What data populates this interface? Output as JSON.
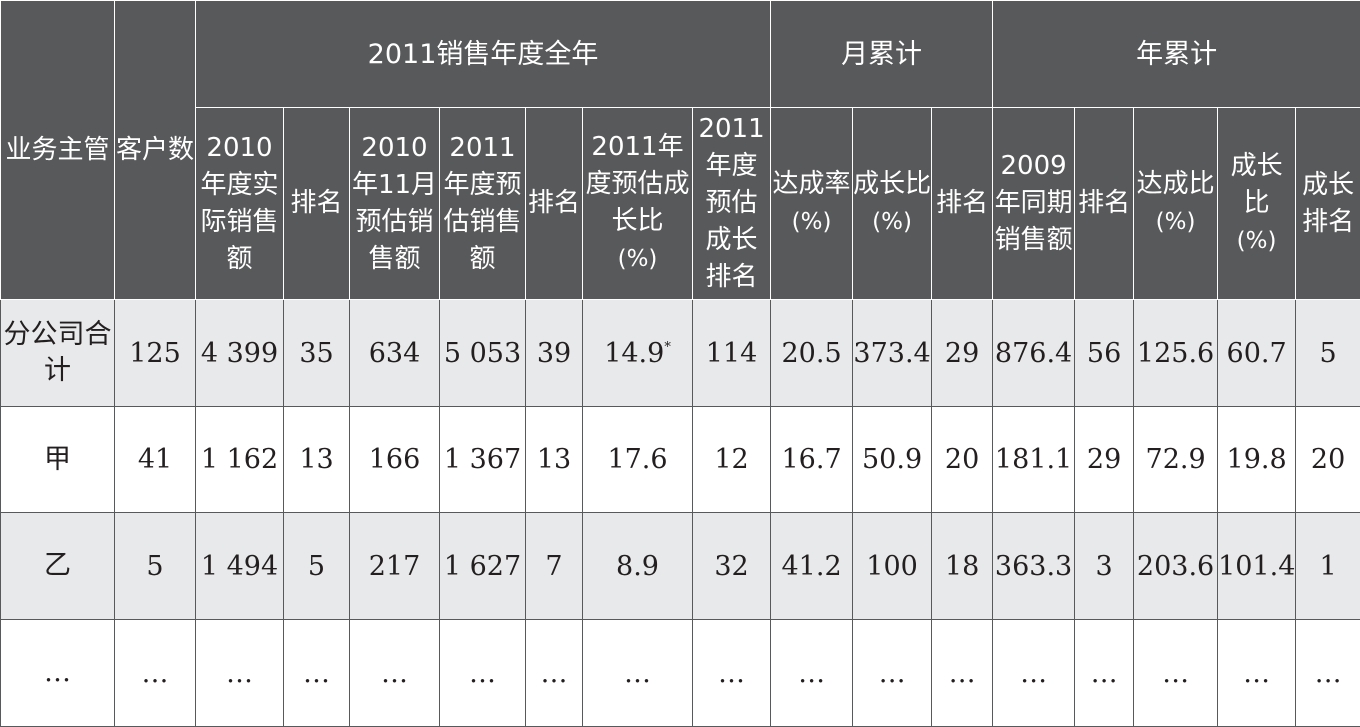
{
  "groups": {
    "sales2011": "2011销售年度全年",
    "monthly": "月累计",
    "yearly": "年累计"
  },
  "headers": {
    "supervisor": "业务主管",
    "customers": "客户数",
    "actual2010": "2010年度实际销售额",
    "rank1": "排名",
    "nov2010": "2010年11月预估销售额",
    "est2011": "2011年度预估销售额",
    "rank2": "排名",
    "growth2011": "2011年度预估成长比",
    "growth2011_unit": "(%)",
    "growthRank2011": "2011年度预估成长排名",
    "mAchieve": "达成率",
    "mAchieve_unit": "(%)",
    "mGrowth": "成长比",
    "mGrowth_unit": "(%)",
    "mRank": "排名",
    "y2009": "2009年同期销售额",
    "yRank": "排名",
    "yAchieve": "达成比",
    "yAchieve_unit": "(%)",
    "yGrowth": "成长比",
    "yGrowth_unit": "(%)",
    "yGrowthRank": "成长排名"
  },
  "rows": [
    {
      "name": "分公司合计",
      "cells": [
        "125",
        "4 399",
        "35",
        "634",
        "5 053",
        "39",
        "14.9",
        "114",
        "20.5",
        "373.4",
        "29",
        "876.4",
        "56",
        "125.6",
        "60.7",
        "5"
      ],
      "note": "*"
    },
    {
      "name": "甲",
      "cells": [
        "41",
        "1 162",
        "13",
        "166",
        "1 367",
        "13",
        "17.6",
        "12",
        "16.7",
        "50.9",
        "20",
        "181.1",
        "29",
        "72.9",
        "19.8",
        "20"
      ]
    },
    {
      "name": "乙",
      "cells": [
        "5",
        "1 494",
        "5",
        "217",
        "1 627",
        "7",
        "8.9",
        "32",
        "41.2",
        "100",
        "18",
        "363.3",
        "3",
        "203.6",
        "101.4",
        "1"
      ]
    },
    {
      "name": "…",
      "cells": [
        "…",
        "…",
        "…",
        "…",
        "…",
        "…",
        "…",
        "…",
        "…",
        "…",
        "…",
        "…",
        "…",
        "…",
        "…",
        "…"
      ]
    }
  ]
}
